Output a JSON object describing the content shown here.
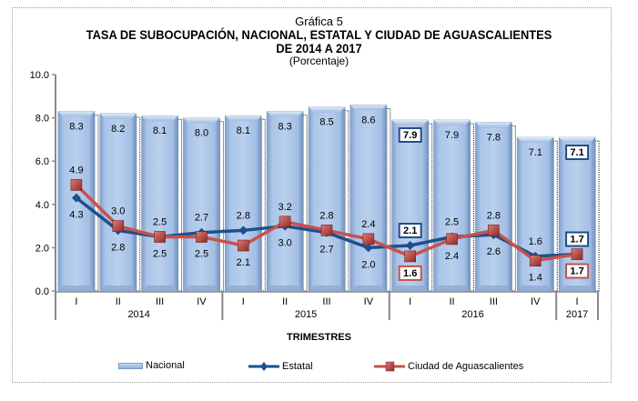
{
  "chart_data": {
    "type": "bar",
    "caption": "Gráfica 5",
    "title": "TASA DE SUBOCUPACIÓN,  NACIONAL,  ESTATAL Y CIUDAD DE AGUASCALIENTES",
    "subtitle": "DE 2014  A 2017",
    "unit_label": "(Porcentaje)",
    "xlabel": "TRIMESTRES",
    "ylabel": "",
    "ylim": [
      0,
      10
    ],
    "yticks": [
      "0.0",
      "2.0",
      "4.0",
      "6.0",
      "8.0",
      "10.0"
    ],
    "categories": [
      "I",
      "II",
      "III",
      "IV",
      "I",
      "II",
      "III",
      "IV",
      "I",
      "II",
      "III",
      "IV",
      "I"
    ],
    "year_groups": [
      {
        "label": "2014",
        "count": 4
      },
      {
        "label": "2015",
        "count": 4
      },
      {
        "label": "2016",
        "count": 4
      },
      {
        "label": "2017",
        "count": 1
      }
    ],
    "series": [
      {
        "name": "Nacional",
        "type": "bar",
        "color": "#a9c4e6",
        "values": [
          8.3,
          8.2,
          8.1,
          8.0,
          8.1,
          8.3,
          8.5,
          8.6,
          7.9,
          7.9,
          7.8,
          7.1,
          7.1
        ],
        "labels": [
          "8.3",
          "8.2",
          "8.1",
          "8.0",
          "8.1",
          "8.3",
          "8.5",
          "8.6",
          "7.9",
          "7.9",
          "7.8",
          "7.1",
          "7.1"
        ],
        "boxed_indices": [
          8,
          12
        ]
      },
      {
        "name": "Estatal",
        "type": "line",
        "color": "#1f4e8c",
        "values": [
          4.3,
          2.8,
          2.5,
          2.7,
          2.8,
          3.0,
          2.7,
          2.0,
          2.1,
          2.5,
          2.6,
          1.6,
          1.7
        ],
        "labels": [
          "4.3",
          "2.8",
          "2.5",
          "2.7",
          "2.8",
          "3.0",
          "2.7",
          "2.0",
          "2.1",
          "2.5",
          "2.6",
          "1.6",
          "1.7"
        ],
        "label_positions": [
          "below",
          "below",
          "below",
          "above",
          "above",
          "below",
          "below",
          "below",
          "above",
          "above",
          "below",
          "above",
          "above"
        ],
        "boxed_indices": [
          8,
          12
        ]
      },
      {
        "name": "Ciudad de Aguascalientes",
        "type": "line",
        "color": "#c9504b",
        "values": [
          4.9,
          3.0,
          2.5,
          2.5,
          2.1,
          3.2,
          2.8,
          2.4,
          1.6,
          2.4,
          2.8,
          1.4,
          1.7
        ],
        "labels": [
          "4.9",
          "3.0",
          "2.5",
          "2.5",
          "2.1",
          "3.2",
          "2.8",
          "2.4",
          "1.6",
          "2.4",
          "2.8",
          "1.4",
          "1.7"
        ],
        "label_positions": [
          "above",
          "above",
          "above",
          "below",
          "below",
          "above",
          "above",
          "above",
          "below",
          "below",
          "above",
          "below",
          "below"
        ],
        "boxed_indices": [
          8,
          12
        ]
      }
    ],
    "grid": false,
    "legend": "bottom"
  }
}
